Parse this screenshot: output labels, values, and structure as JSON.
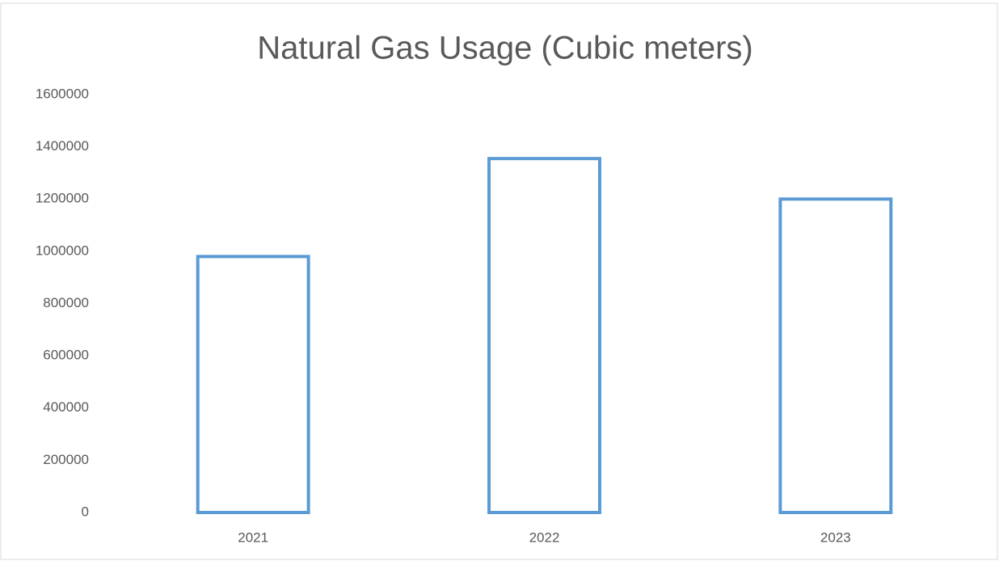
{
  "chart_data": {
    "type": "bar",
    "title": "Natural Gas Usage (Cubic meters)",
    "categories": [
      "2021",
      "2022",
      "2023"
    ],
    "values": [
      980000,
      1355000,
      1200000
    ],
    "color": "#5b9bd5",
    "ylim": [
      0,
      1600000
    ],
    "yticks": [
      0,
      200000,
      400000,
      600000,
      800000,
      1000000,
      1200000,
      1400000,
      1600000
    ],
    "grid": false
  }
}
